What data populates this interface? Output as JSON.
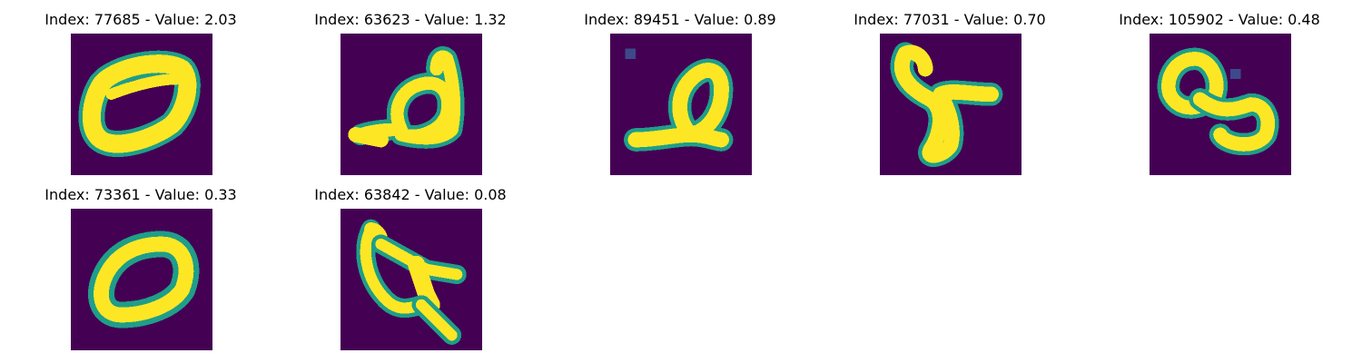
{
  "figure": {
    "colormap": [
      "#440154",
      "#482878",
      "#3e4989",
      "#31688e",
      "#26828e",
      "#1f9e89",
      "#35b779",
      "#6ece58",
      "#b5de2b",
      "#fde725"
    ],
    "background_color": "#440154",
    "panels": [
      {
        "title": "Index: 77685 - Value: 2.03",
        "index": "77685",
        "value": "2.03"
      },
      {
        "title": "Index: 63623 - Value: 1.32",
        "index": "63623",
        "value": "1.32"
      },
      {
        "title": "Index: 89451 - Value: 0.89",
        "index": "89451",
        "value": "0.89"
      },
      {
        "title": "Index: 77031 - Value: 0.70",
        "index": "77031",
        "value": "0.70"
      },
      {
        "title": "Index: 105902 - Value: 0.48",
        "index": "105902",
        "value": "0.48"
      },
      {
        "title": "Index: 73361 - Value: 0.33",
        "index": "73361",
        "value": "0.33"
      },
      {
        "title": "Index: 63842 - Value: 0.08",
        "index": "63842",
        "value": "0.08"
      }
    ]
  }
}
